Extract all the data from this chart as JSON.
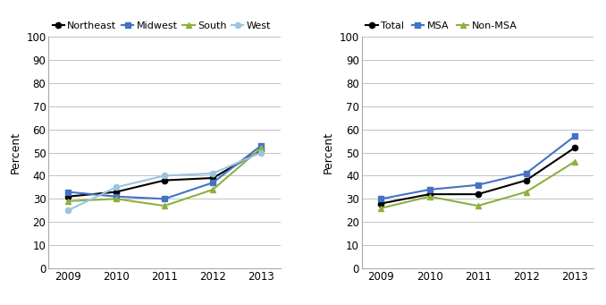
{
  "years": [
    2009,
    2010,
    2011,
    2012,
    2013
  ],
  "left_chart": {
    "series_order": [
      "Northeast",
      "Midwest",
      "South",
      "West"
    ],
    "series": {
      "Northeast": [
        31,
        33,
        38,
        39,
        51
      ],
      "Midwest": [
        33,
        31,
        30,
        37,
        53
      ],
      "South": [
        29,
        30,
        27,
        34,
        52
      ],
      "West": [
        25,
        35,
        40,
        41,
        50
      ]
    },
    "colors": {
      "Northeast": "#000000",
      "Midwest": "#4472c4",
      "South": "#8db03f",
      "West": "#9dc3e0"
    },
    "markers": {
      "Northeast": "o",
      "Midwest": "s",
      "South": "^",
      "West": "o"
    },
    "ylabel": "Percent",
    "ylim": [
      0,
      100
    ],
    "yticks": [
      0,
      10,
      20,
      30,
      40,
      50,
      60,
      70,
      80,
      90,
      100
    ]
  },
  "right_chart": {
    "series_order": [
      "Total",
      "MSA",
      "Non-MSA"
    ],
    "series": {
      "Total": [
        28,
        32,
        32,
        38,
        52
      ],
      "MSA": [
        30,
        34,
        36,
        41,
        57
      ],
      "Non-MSA": [
        26,
        31,
        27,
        33,
        46
      ]
    },
    "colors": {
      "Total": "#000000",
      "MSA": "#4472c4",
      "Non-MSA": "#8db03f"
    },
    "markers": {
      "Total": "o",
      "MSA": "s",
      "Non-MSA": "^"
    },
    "ylabel": "Percent",
    "ylim": [
      0,
      100
    ],
    "yticks": [
      0,
      10,
      20,
      30,
      40,
      50,
      60,
      70,
      80,
      90,
      100
    ]
  },
  "grid_color": "#b8b8b8",
  "background_color": "#ffffff",
  "legend_fontsize": 8,
  "axis_fontsize": 9,
  "tick_fontsize": 8.5
}
